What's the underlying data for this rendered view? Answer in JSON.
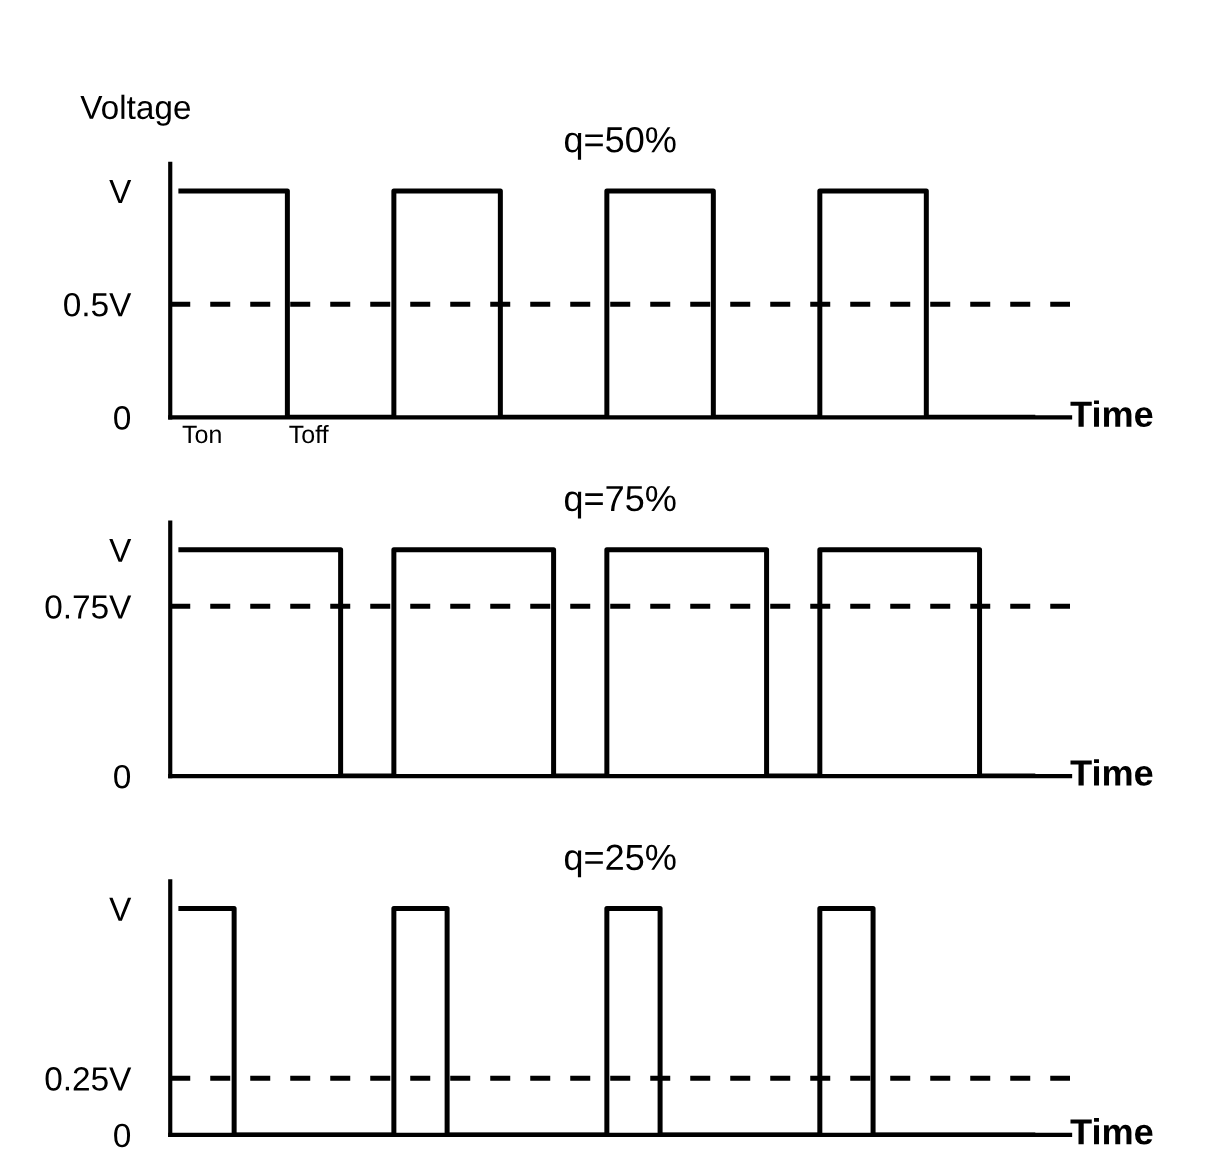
{
  "chart_data": [
    {
      "type": "step",
      "title": "q=50%",
      "ylabel": "Voltage",
      "xlabel": "Time",
      "ylim": [
        0,
        1.12
      ],
      "categories": [
        null,
        null,
        null,
        null,
        null,
        null,
        null,
        null,
        null,
        null,
        null,
        null,
        null,
        null,
        null,
        null,
        null
      ],
      "values": [
        1,
        1,
        0,
        0,
        1,
        1,
        0,
        0,
        1,
        1,
        0,
        0,
        1,
        1,
        0,
        0,
        0
      ],
      "color": "#000000",
      "yticks": [
        {
          "value": 0,
          "label": "0"
        },
        {
          "value": 0.5,
          "label": "0.5V"
        },
        {
          "value": 1,
          "label": "V"
        }
      ],
      "ref_lines": [
        {
          "axis": "y",
          "value": 0.5,
          "line_style": "dashed",
          "color": "#000000"
        }
      ],
      "annotations": [
        "Ton",
        "Toff"
      ],
      "grid": false,
      "legend": false
    },
    {
      "type": "step",
      "title": "q=75%",
      "xlabel": "Time",
      "ylim": [
        0,
        1.12
      ],
      "categories": [
        null,
        null,
        null,
        null,
        null,
        null,
        null,
        null,
        null,
        null,
        null,
        null,
        null,
        null,
        null,
        null,
        null
      ],
      "values": [
        1,
        1,
        1,
        0,
        1,
        1,
        1,
        0,
        1,
        1,
        1,
        0,
        1,
        1,
        1,
        0,
        0
      ],
      "color": "#000000",
      "yticks": [
        {
          "value": 0,
          "label": "0"
        },
        {
          "value": 0.75,
          "label": "0.75V"
        },
        {
          "value": 1,
          "label": "V"
        }
      ],
      "ref_lines": [
        {
          "axis": "y",
          "value": 0.75,
          "line_style": "dashed",
          "color": "#000000"
        }
      ],
      "grid": false,
      "legend": false
    },
    {
      "type": "step",
      "title": "q=25%",
      "xlabel": "Time",
      "ylim": [
        0,
        1.12
      ],
      "categories": [
        null,
        null,
        null,
        null,
        null,
        null,
        null,
        null,
        null,
        null,
        null,
        null,
        null,
        null,
        null,
        null,
        null
      ],
      "values": [
        1,
        0,
        0,
        0,
        1,
        0,
        0,
        0,
        1,
        0,
        0,
        0,
        1,
        0,
        0,
        0,
        0
      ],
      "color": "#000000",
      "yticks": [
        {
          "value": 0,
          "label": "0"
        },
        {
          "value": 0.25,
          "label": "0.25V"
        },
        {
          "value": 1,
          "label": "V"
        }
      ],
      "ref_lines": [
        {
          "axis": "y",
          "value": 0.25,
          "line_style": "dashed",
          "color": "#000000"
        }
      ],
      "grid": false,
      "legend": false
    }
  ]
}
